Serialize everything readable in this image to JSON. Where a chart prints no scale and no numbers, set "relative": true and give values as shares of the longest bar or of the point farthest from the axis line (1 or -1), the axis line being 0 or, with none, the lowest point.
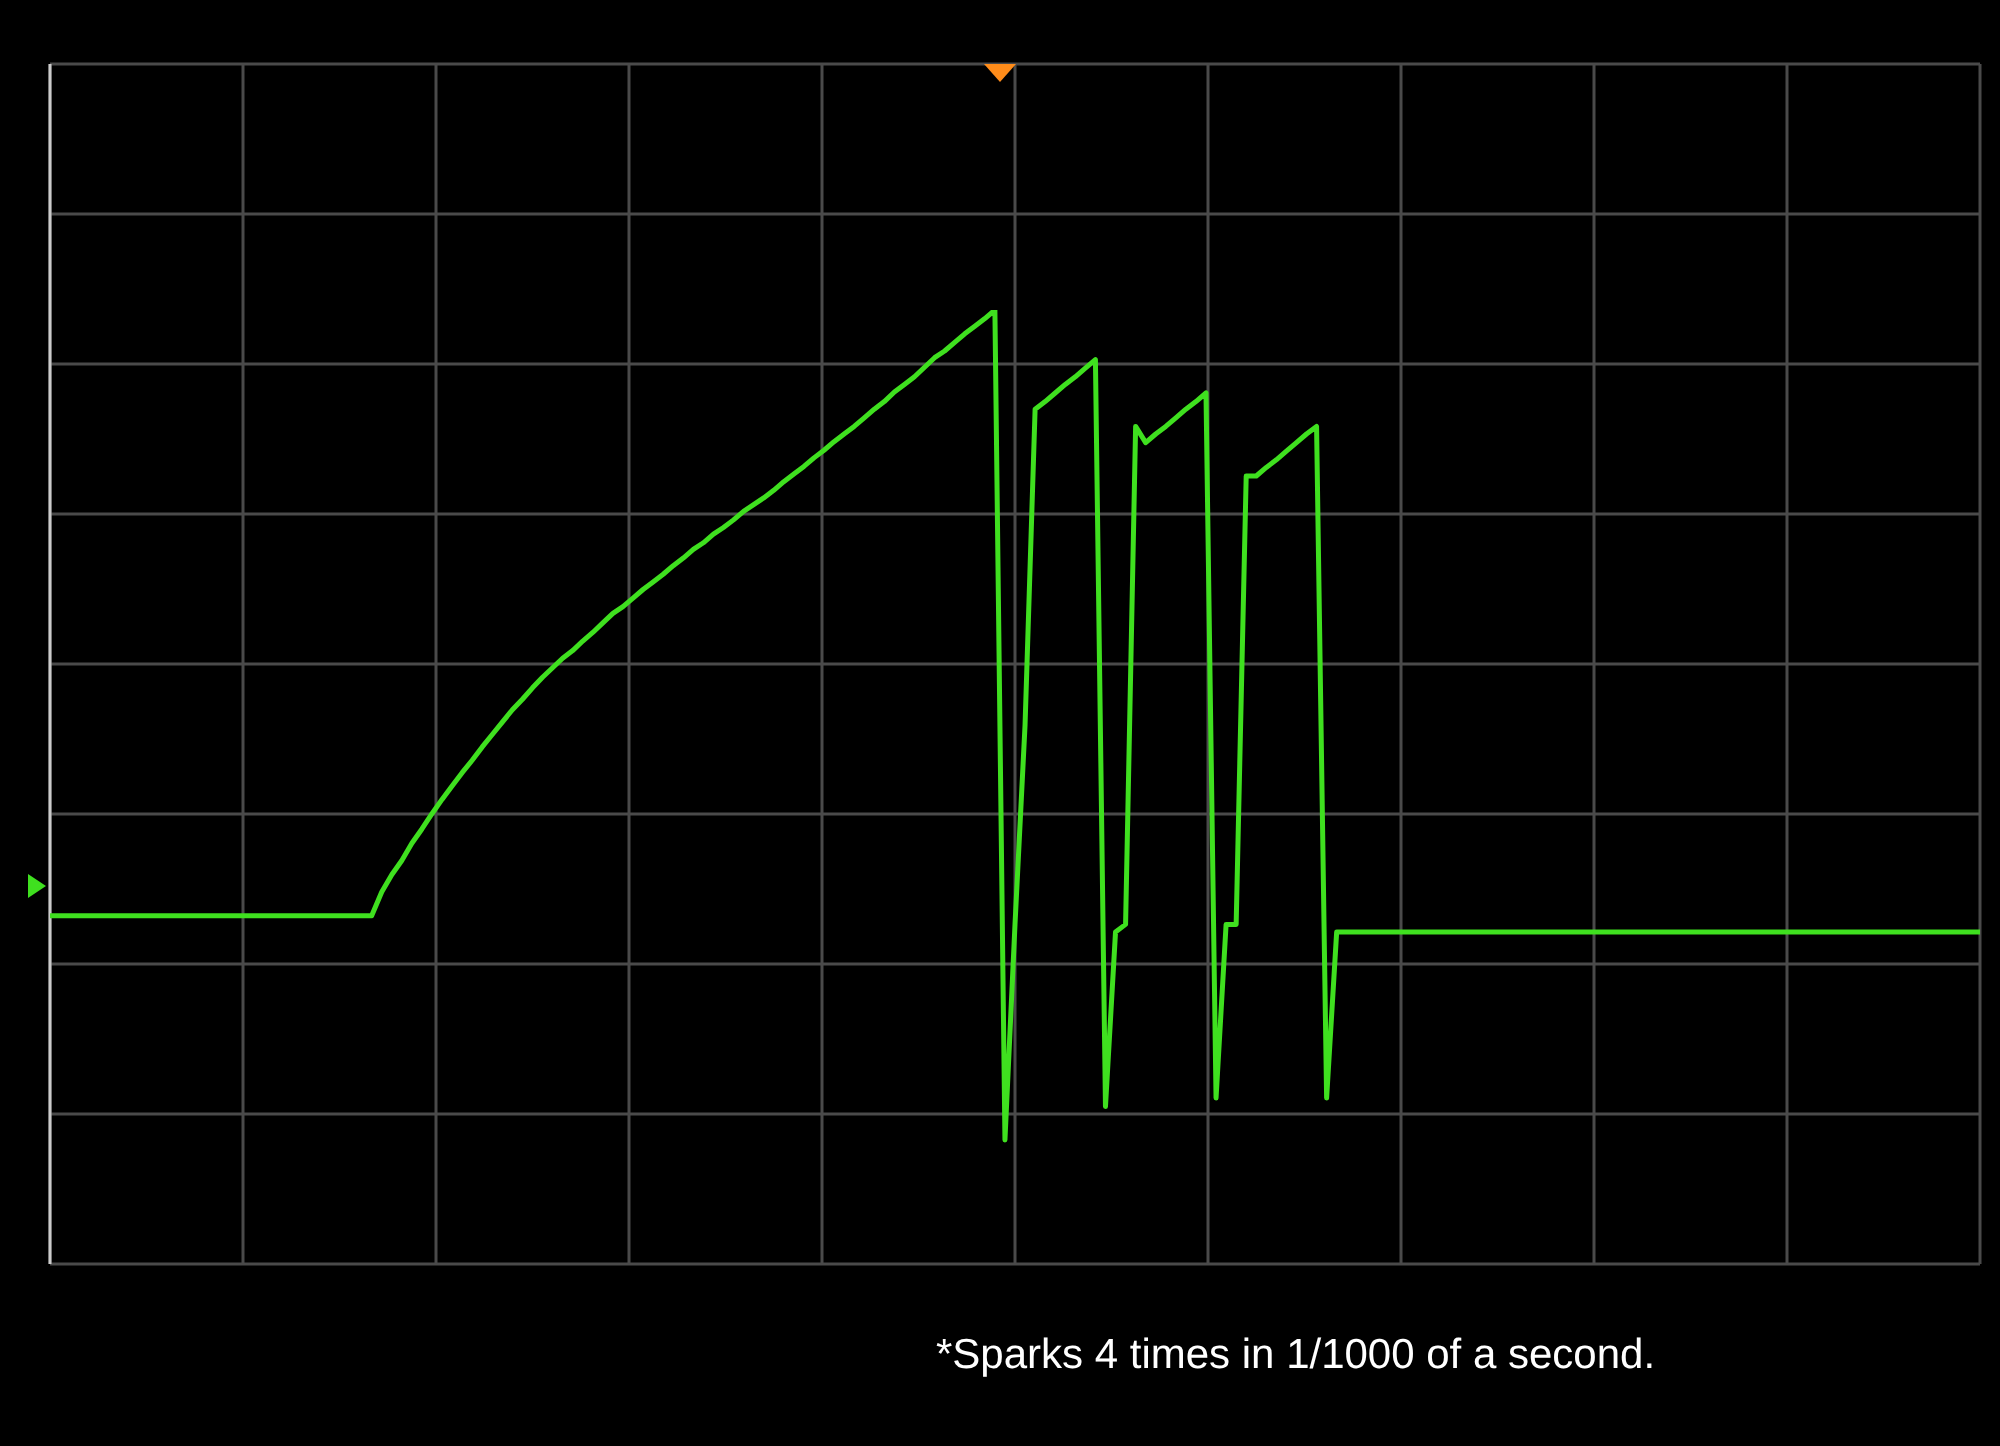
{
  "chart_data": {
    "type": "line",
    "relative": true,
    "grid": true,
    "legend": false,
    "categories": [
      null,
      null,
      null,
      null,
      null,
      null,
      null,
      null,
      null,
      null,
      null,
      null,
      null,
      null,
      null,
      null,
      null,
      null,
      null,
      null,
      null,
      null,
      null,
      null,
      null,
      null,
      null,
      null,
      null,
      null,
      null,
      null,
      null,
      null,
      null,
      null,
      null,
      null,
      null,
      null,
      null,
      null,
      null,
      null,
      null,
      null,
      null,
      null,
      null,
      null,
      null,
      null,
      null,
      null,
      null,
      null,
      null,
      null,
      null,
      null,
      null,
      null,
      null,
      null,
      null,
      null,
      null,
      null,
      null,
      null,
      null,
      null,
      null,
      null,
      null,
      null,
      null,
      null,
      null,
      null,
      null,
      null,
      null,
      null,
      null,
      null,
      null,
      null,
      null,
      null,
      null,
      null,
      null,
      null,
      null,
      null,
      null,
      null,
      null,
      null,
      null,
      null,
      null,
      null,
      null,
      null,
      null,
      null,
      null,
      null,
      null,
      null,
      null,
      null,
      null,
      null,
      null,
      null,
      null,
      null,
      null,
      null,
      null,
      null,
      null,
      null,
      null,
      null,
      null,
      null,
      null,
      null,
      null,
      null,
      null,
      null,
      null,
      null,
      null,
      null,
      null,
      null,
      null,
      null,
      null,
      null,
      null,
      null,
      null,
      null,
      null,
      null,
      null,
      null,
      null,
      null,
      null,
      null,
      null,
      null,
      null,
      null,
      null,
      null,
      null,
      null,
      null,
      null,
      null,
      null,
      null,
      null,
      null,
      null,
      null,
      null,
      null,
      null,
      null,
      null,
      null,
      null,
      null,
      null,
      null,
      null,
      null,
      null,
      null,
      null,
      null,
      null,
      null
    ],
    "series": [
      {
        "color": "#3fe01f",
        "values": [
          0.365,
          0.365,
          0.365,
          0.365,
          0.365,
          0.365,
          0.365,
          0.365,
          0.365,
          0.365,
          0.365,
          0.365,
          0.365,
          0.365,
          0.365,
          0.365,
          0.365,
          0.365,
          0.365,
          0.365,
          0.365,
          0.365,
          0.365,
          0.365,
          0.365,
          0.365,
          0.365,
          0.365,
          0.365,
          0.365,
          0.365,
          0.365,
          0.365,
          0.39,
          0.408,
          0.423,
          0.441,
          0.456,
          0.472,
          0.487,
          0.501,
          0.515,
          0.528,
          0.542,
          0.555,
          0.568,
          0.581,
          0.592,
          0.604,
          0.615,
          0.625,
          0.635,
          0.643,
          0.653,
          0.662,
          0.672,
          0.682,
          0.689,
          0.698,
          0.707,
          0.715,
          0.723,
          0.732,
          0.74,
          0.749,
          0.756,
          0.765,
          0.772,
          0.78,
          0.789,
          0.796,
          0.803,
          0.811,
          0.82,
          0.828,
          0.836,
          0.845,
          0.853,
          0.862,
          0.87,
          0.878,
          0.887,
          0.896,
          0.904,
          0.914,
          0.922,
          0.93,
          0.94,
          0.95,
          0.957,
          0.966,
          0.975,
          0.983,
          0.991,
          1,
          0.13,
          0.356,
          0.565,
          0.896,
          0.904,
          0.913,
          0.922,
          0.93,
          0.939,
          0.948,
          0.165,
          0.348,
          0.356,
          0.878,
          0.861,
          0.87,
          0.878,
          0.887,
          0.896,
          0.904,
          0.913,
          0.174,
          0.356,
          0.356,
          0.826,
          0.826,
          0.835,
          0.843,
          0.852,
          0.861,
          0.87,
          0.878,
          0.174,
          0.348,
          0.348,
          0.348,
          0.348,
          0.348,
          0.348,
          0.348,
          0.348,
          0.348,
          0.348,
          0.348,
          0.348,
          0.348,
          0.348,
          0.348,
          0.348,
          0.348,
          0.348,
          0.348,
          0.348,
          0.348,
          0.348,
          0.348,
          0.348,
          0.348,
          0.348,
          0.348,
          0.348,
          0.348,
          0.348,
          0.348,
          0.348,
          0.348,
          0.348,
          0.348,
          0.348,
          0.348,
          0.348,
          0.348,
          0.348,
          0.348,
          0.348,
          0.348,
          0.348,
          0.348,
          0.348,
          0.348,
          0.348,
          0.348,
          0.348,
          0.348,
          0.348,
          0.348,
          0.348,
          0.348,
          0.348,
          0.348,
          0.348,
          0.348,
          0.348,
          0.348,
          0.348,
          0.348,
          0.348,
          0.348
        ]
      }
    ],
    "annotations": [
      "*Sparks 4 times in 1/1000 of a second."
    ]
  }
}
